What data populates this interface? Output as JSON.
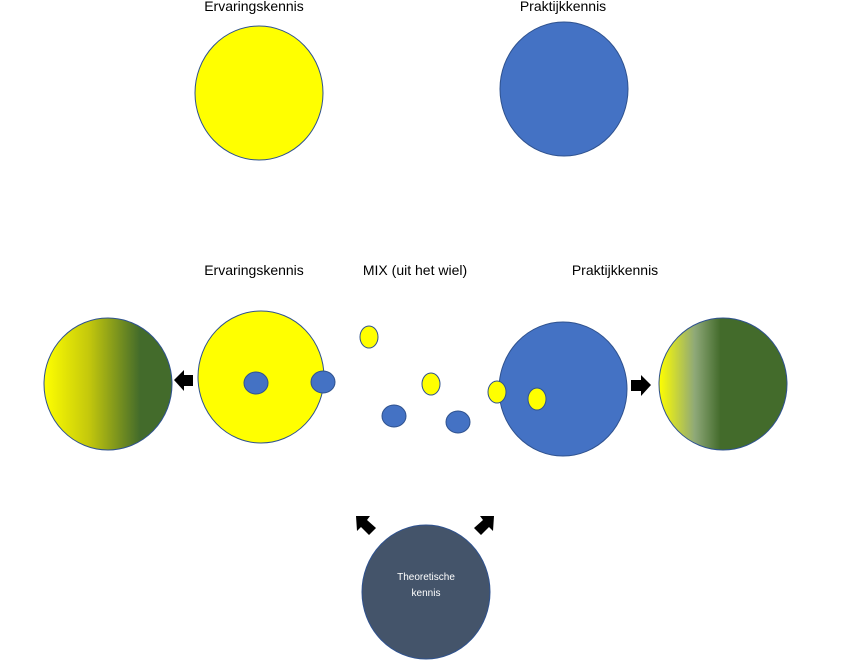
{
  "top": {
    "left_label": "Ervaringskennis",
    "right_label": "Praktijkkennis"
  },
  "middle": {
    "left_label": "Ervaringskennis",
    "mix_label": "MIX (uit het wiel)",
    "right_label": "Praktijkkennis"
  },
  "bottom": {
    "line1": "Theoretische",
    "line2": "kennis"
  },
  "colors": {
    "yellow": "#ffff00",
    "blue": "#4472c4",
    "dark_green": "#436b2b",
    "slate": "#44546a"
  }
}
